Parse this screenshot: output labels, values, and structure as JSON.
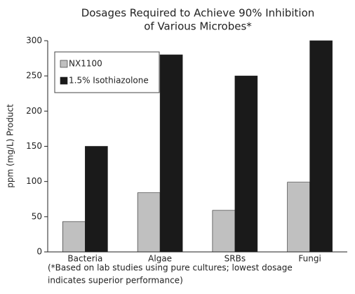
{
  "chart_data": {
    "type": "bar",
    "title": [
      "Dosages Required to Achieve 90% Inhibition",
      "of Various Microbes*"
    ],
    "y_label": "ppm (mg/L) Product",
    "categories": [
      "Bacteria",
      "Algae",
      "SRBs",
      "Fungi"
    ],
    "series": [
      {
        "name": "NX1100",
        "color": "#c0c0c0",
        "values": [
          43,
          84,
          59,
          99
        ]
      },
      {
        "name": "1.5% Isothiazolone",
        "color": "#1a1a1a",
        "values": [
          150,
          280,
          250,
          300
        ]
      }
    ],
    "ylim": [
      0,
      300
    ],
    "yticks": [
      0,
      50,
      100,
      150,
      200,
      250,
      300
    ],
    "legend": "upper left",
    "note": [
      "(*Based on lab studies using pure cultures; lowest dosage",
      "indicates superior performance)"
    ]
  }
}
